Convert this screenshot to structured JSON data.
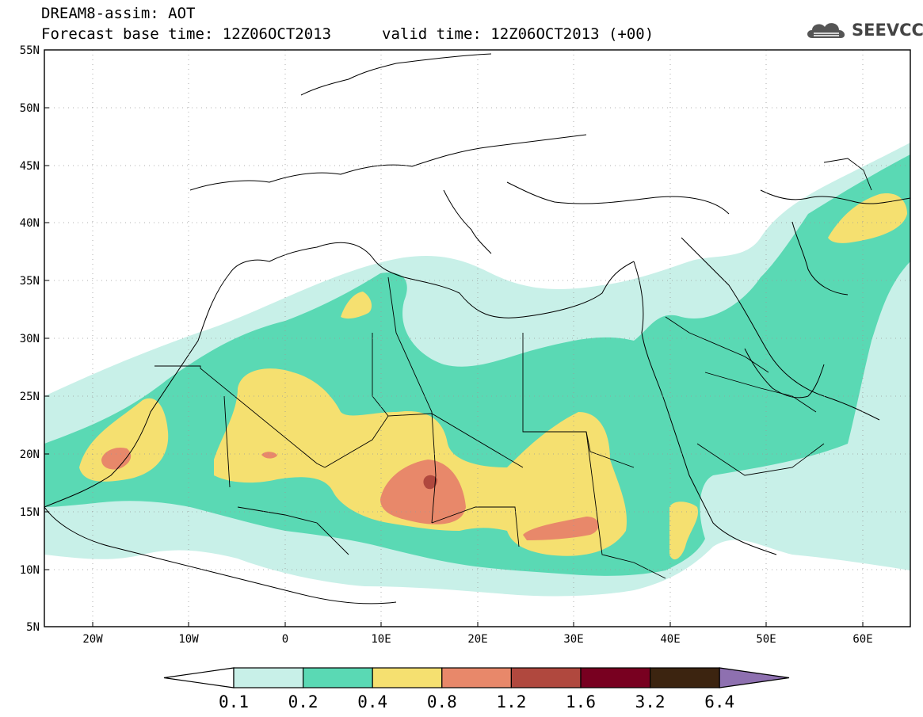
{
  "header": {
    "title_line1": "DREAM8-assim: AOT",
    "title_line2": "Forecast base time: 12Z06OCT2013",
    "title_line3": "valid time: 12Z06OCT2013 (+00)",
    "logo_text": "SEEVCCC"
  },
  "map": {
    "lat_labels": [
      "55N",
      "50N",
      "45N",
      "40N",
      "35N",
      "30N",
      "25N",
      "20N",
      "15N",
      "10N",
      "5N"
    ],
    "lon_labels": [
      "20W",
      "10W",
      "0",
      "10E",
      "20E",
      "30E",
      "40E",
      "50E",
      "60E"
    ],
    "lat_range": [
      5,
      55
    ],
    "lon_range": [
      -25,
      65
    ]
  },
  "legend": {
    "levels": [
      "0.1",
      "0.2",
      "0.4",
      "0.8",
      "1.2",
      "1.6",
      "3.2",
      "6.4"
    ],
    "colors": [
      "#c8f0e8",
      "#5ad9b4",
      "#f5e070",
      "#e8886a",
      "#b0483e",
      "#780020",
      "#3c2410",
      "#8e70b0"
    ]
  }
}
